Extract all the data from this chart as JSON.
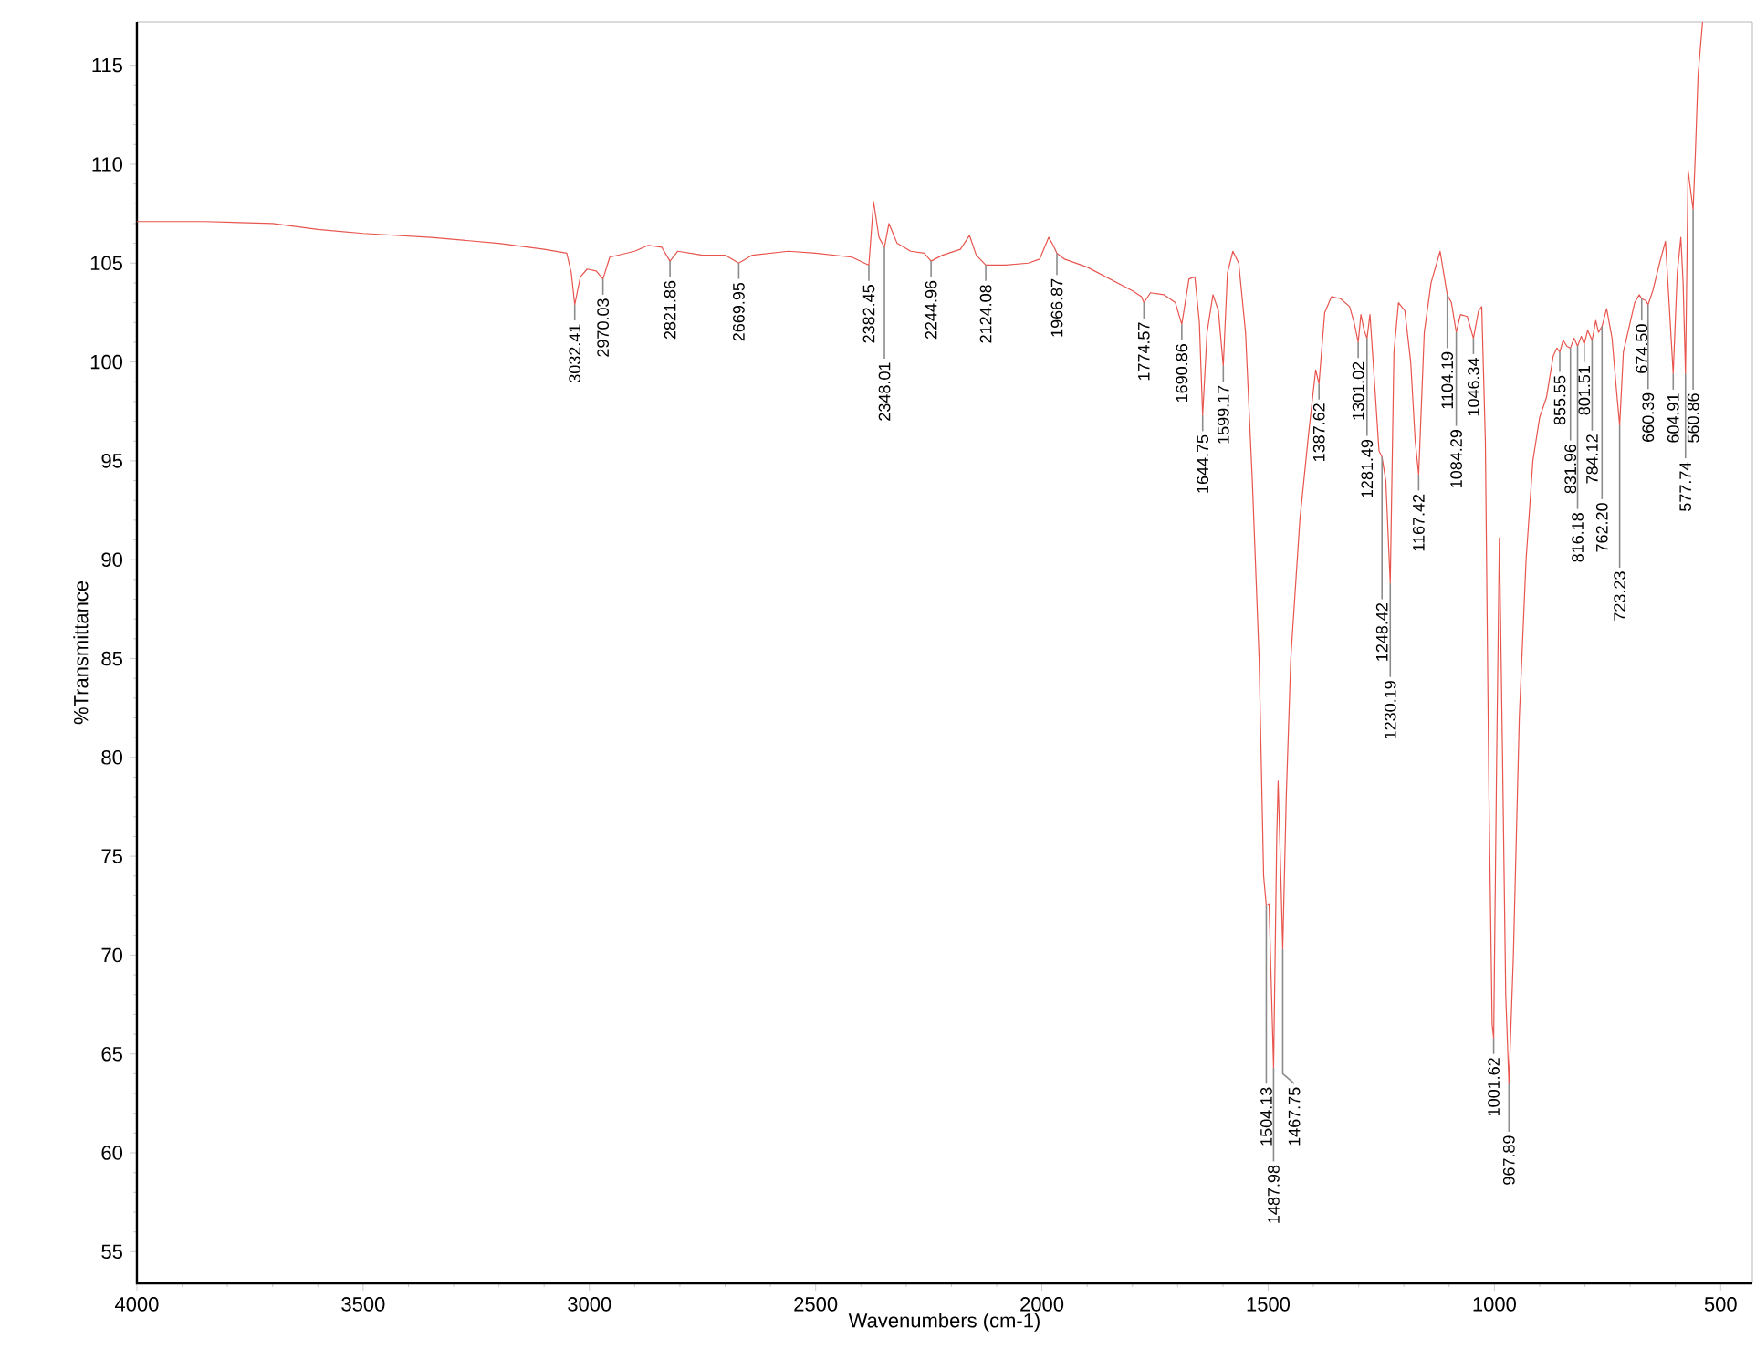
{
  "chart_data": {
    "type": "line",
    "xlabel": "Wavenumbers (cm-1)",
    "ylabel": "%Transmittance",
    "xlim": [
      4000,
      430
    ],
    "ylim": [
      53.4,
      117.2
    ],
    "xticks": [
      4000,
      3500,
      3000,
      2500,
      2000,
      1500,
      1000,
      500
    ],
    "yticks": [
      55,
      60,
      65,
      70,
      75,
      80,
      85,
      90,
      95,
      100,
      105,
      110,
      115
    ],
    "series": [
      {
        "color": "#e8554e",
        "x": [
          4000,
          3850,
          3700,
          3600,
          3500,
          3350,
          3200,
          3100,
          3050,
          3040,
          3032.41,
          3020,
          3005,
          2985,
          2970.03,
          2955,
          2900,
          2870,
          2840,
          2821.86,
          2805,
          2750,
          2700,
          2669.95,
          2640,
          2560,
          2500,
          2420,
          2382.45,
          2372,
          2360,
          2348.01,
          2338,
          2320,
          2290,
          2260,
          2244.96,
          2220,
          2180,
          2160,
          2145,
          2124.08,
          2080,
          2030,
          2005,
          1985,
          1975,
          1966.87,
          1950,
          1900,
          1850,
          1800,
          1780,
          1774.57,
          1760,
          1730,
          1705,
          1690.86,
          1675,
          1662,
          1652,
          1644.75,
          1635,
          1622,
          1610,
          1599.17,
          1590,
          1578,
          1565,
          1550,
          1535,
          1520,
          1510,
          1504.13,
          1498,
          1487.98,
          1481,
          1478,
          1472,
          1467.75,
          1460,
          1450,
          1430,
          1410,
          1395,
          1387.62,
          1375,
          1360,
          1340,
          1320,
          1310,
          1301.02,
          1295,
          1288,
          1281.49,
          1275,
          1265,
          1255,
          1248.42,
          1240,
          1230.19,
          1222,
          1212,
          1198,
          1185,
          1175,
          1167.42,
          1155,
          1140,
          1120,
          1110,
          1104.19,
          1095,
          1084.29,
          1075,
          1060,
          1046.34,
          1035,
          1028,
          1020,
          1012,
          1005,
          1001.62,
          995,
          989,
          982,
          975,
          967.89,
          958,
          945,
          930,
          915,
          900,
          885,
          870,
          862,
          855.55,
          848,
          840,
          831.96,
          824,
          816.18,
          808,
          801.51,
          794,
          784.12,
          776,
          770,
          762.2,
          752,
          740,
          730,
          723.23,
          715,
          705,
          690,
          680,
          674.5,
          665,
          660.39,
          650,
          635,
          622,
          614,
          604.91,
          596,
          588,
          583,
          577.74,
          572,
          566,
          560.86,
          556,
          550,
          540
        ],
        "values": [
          107.1,
          107.1,
          107.0,
          106.7,
          106.5,
          106.3,
          106.0,
          105.7,
          105.5,
          104.5,
          102.9,
          104.3,
          104.7,
          104.6,
          104.2,
          105.3,
          105.6,
          105.9,
          105.8,
          105.1,
          105.6,
          105.4,
          105.4,
          105.0,
          105.4,
          105.6,
          105.5,
          105.3,
          104.9,
          108.1,
          106.3,
          105.8,
          107.0,
          106.0,
          105.6,
          105.5,
          105.1,
          105.4,
          105.7,
          106.4,
          105.4,
          104.9,
          104.9,
          105.0,
          105.2,
          106.3,
          105.9,
          105.5,
          105.2,
          104.8,
          104.2,
          103.6,
          103.3,
          103.0,
          103.5,
          103.4,
          103.0,
          101.9,
          104.2,
          104.3,
          102.0,
          97.3,
          101.5,
          103.4,
          102.6,
          99.8,
          104.5,
          105.6,
          105.0,
          101.5,
          94.0,
          85.0,
          74.0,
          72.5,
          72.6,
          64.3,
          76.0,
          78.8,
          74.0,
          70.3,
          78.0,
          85.0,
          92.0,
          96.5,
          99.6,
          98.9,
          102.5,
          103.3,
          103.2,
          102.8,
          102.0,
          101.0,
          102.4,
          101.6,
          101.2,
          102.4,
          99.0,
          95.5,
          95.2,
          94.0,
          88.8,
          100.5,
          103.0,
          102.6,
          100.0,
          96.0,
          94.3,
          101.5,
          104.0,
          105.6,
          104.2,
          103.4,
          103.0,
          101.5,
          102.4,
          102.3,
          101.2,
          102.6,
          102.8,
          96.0,
          78.0,
          66.5,
          65.8,
          80.0,
          91.1,
          80.0,
          68.0,
          63.5,
          70.0,
          82.0,
          90.0,
          95.0,
          97.2,
          98.2,
          100.3,
          100.7,
          100.5,
          101.1,
          100.8,
          100.7,
          101.2,
          100.8,
          101.3,
          100.9,
          101.6,
          101.1,
          102.1,
          101.5,
          101.8,
          102.7,
          101.2,
          98.5,
          96.8,
          100.5,
          101.5,
          103.0,
          103.4,
          103.2,
          103.1,
          102.9,
          103.6,
          105.0,
          106.1,
          103.0,
          99.4,
          104.5,
          106.3,
          104.0,
          99.4,
          109.7,
          108.6,
          107.7,
          110.5,
          114.5,
          117.2
        ]
      }
    ],
    "annotations": [
      {
        "text": "3032.41",
        "x": 3032.41,
        "y": 102.9
      },
      {
        "text": "2970.03",
        "x": 2970.03,
        "y": 104.2
      },
      {
        "text": "2821.86",
        "x": 2821.86,
        "y": 105.1
      },
      {
        "text": "2669.95",
        "x": 2669.95,
        "y": 105.0
      },
      {
        "text": "2382.45",
        "x": 2382.45,
        "y": 104.9
      },
      {
        "text": "2348.01",
        "x": 2348.01,
        "y": 105.8
      },
      {
        "text": "2244.96",
        "x": 2244.96,
        "y": 105.1
      },
      {
        "text": "2124.08",
        "x": 2124.08,
        "y": 104.9
      },
      {
        "text": "1966.87",
        "x": 1966.87,
        "y": 105.5
      },
      {
        "text": "1774.57",
        "x": 1774.57,
        "y": 103.0
      },
      {
        "text": "1690.86",
        "x": 1690.86,
        "y": 101.9
      },
      {
        "text": "1644.75",
        "x": 1644.75,
        "y": 97.3
      },
      {
        "text": "1599.17",
        "x": 1599.17,
        "y": 99.8
      },
      {
        "text": "1504.13",
        "x": 1504.13,
        "y": 72.5
      },
      {
        "text": "1487.98",
        "x": 1487.98,
        "y": 64.3
      },
      {
        "text": "1467.75",
        "x": 1467.75,
        "y": 70.3
      },
      {
        "text": "1387.62",
        "x": 1387.62,
        "y": 98.9
      },
      {
        "text": "1301.02",
        "x": 1301.02,
        "y": 101.0
      },
      {
        "text": "1281.49",
        "x": 1281.49,
        "y": 101.2
      },
      {
        "text": "1248.42",
        "x": 1248.42,
        "y": 95.2
      },
      {
        "text": "1230.19",
        "x": 1230.19,
        "y": 88.8
      },
      {
        "text": "1167.42",
        "x": 1167.42,
        "y": 94.3
      },
      {
        "text": "1104.19",
        "x": 1104.19,
        "y": 103.4
      },
      {
        "text": "1084.29",
        "x": 1084.29,
        "y": 101.5
      },
      {
        "text": "1046.34",
        "x": 1046.34,
        "y": 101.2
      },
      {
        "text": "1001.62",
        "x": 1001.62,
        "y": 65.8
      },
      {
        "text": "967.89",
        "x": 967.89,
        "y": 63.5
      },
      {
        "text": "855.55",
        "x": 855.55,
        "y": 100.5
      },
      {
        "text": "831.96",
        "x": 831.96,
        "y": 100.7
      },
      {
        "text": "816.18",
        "x": 816.18,
        "y": 100.8
      },
      {
        "text": "801.51",
        "x": 801.51,
        "y": 100.9
      },
      {
        "text": "784.12",
        "x": 784.12,
        "y": 101.1
      },
      {
        "text": "762.20",
        "x": 762.2,
        "y": 101.8
      },
      {
        "text": "723.23",
        "x": 723.23,
        "y": 96.8
      },
      {
        "text": "674.50",
        "x": 674.5,
        "y": 103.2
      },
      {
        "text": "660.39",
        "x": 660.39,
        "y": 102.9
      },
      {
        "text": "604.91",
        "x": 604.91,
        "y": 99.4
      },
      {
        "text": "577.74",
        "x": 577.74,
        "y": 99.4
      },
      {
        "text": "560.86",
        "x": 560.86,
        "y": 107.7
      }
    ]
  }
}
